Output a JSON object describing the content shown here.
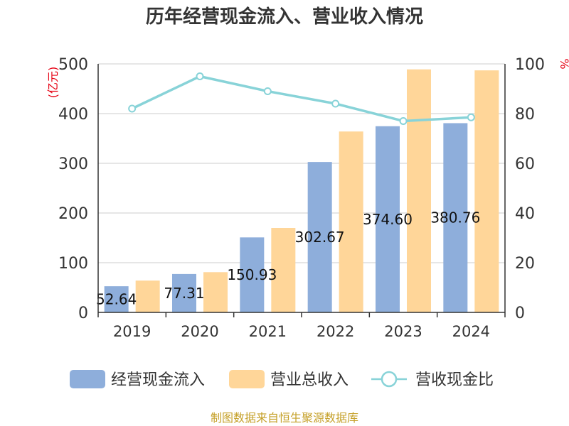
{
  "chart_data": {
    "type": "bar",
    "title": "历年经营现金流入、营业收入情况",
    "categories": [
      "2019",
      "2020",
      "2021",
      "2022",
      "2023",
      "2024"
    ],
    "series": [
      {
        "name": "经营现金流入",
        "type": "bar",
        "axis": "left",
        "color": "#8eaedb",
        "values": [
          52.64,
          77.31,
          150.93,
          302.67,
          374.6,
          380.76
        ],
        "labels": [
          "52.64",
          "77.31",
          "150.93",
          "302.67",
          "374.60",
          "380.76"
        ]
      },
      {
        "name": "营业总收入",
        "type": "bar",
        "axis": "left",
        "color": "#ffd699",
        "values": [
          64,
          81,
          170,
          364,
          489,
          487
        ]
      },
      {
        "name": "营收现金比",
        "type": "line",
        "axis": "right",
        "color": "#88d3d8",
        "values": [
          82,
          95,
          89,
          84,
          77,
          78.5
        ]
      }
    ],
    "ylabel_left": "(亿元)",
    "ylabel_right": "%",
    "ylim_left": [
      0,
      500
    ],
    "yticks_left": [
      0,
      100,
      200,
      300,
      400,
      500
    ],
    "ylim_right": [
      0,
      100
    ],
    "yticks_right": [
      0,
      20,
      40,
      60,
      80,
      100
    ],
    "grid": true,
    "legend_position": "bottom"
  },
  "footer": "制图数据来自恒生聚源数据库"
}
